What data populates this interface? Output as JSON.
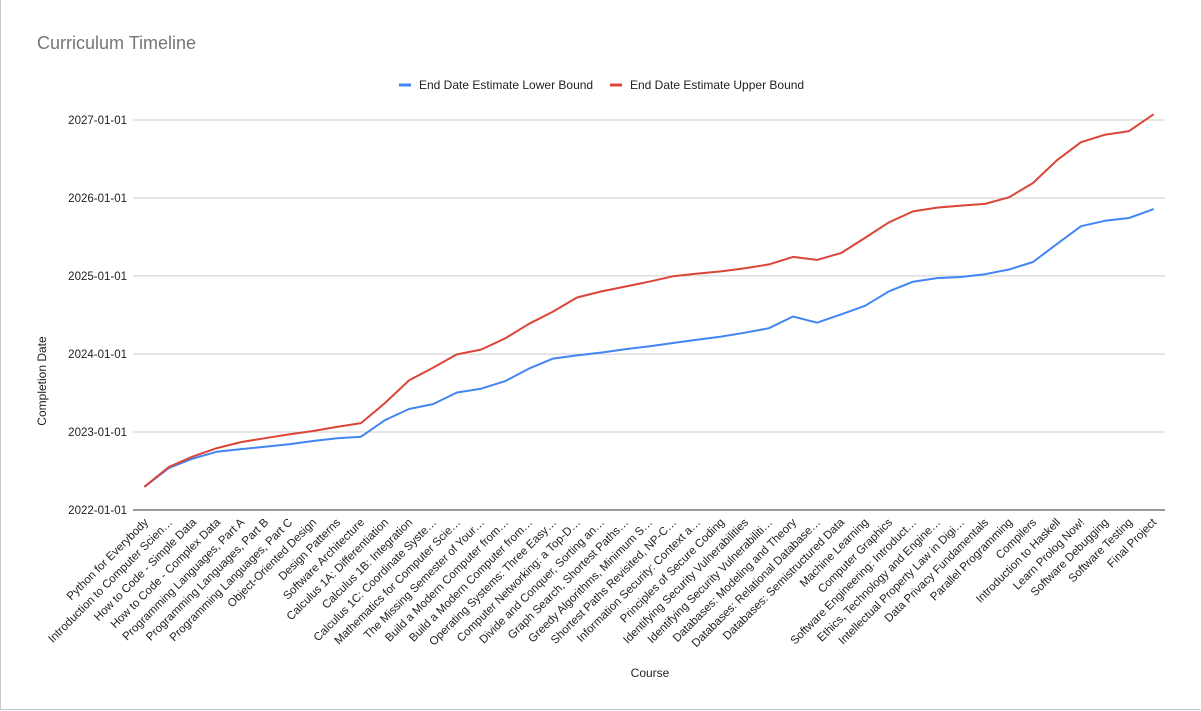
{
  "chart_data": {
    "type": "line",
    "title": "Curriculum Timeline",
    "xlabel": "Course",
    "ylabel": "Completion Date",
    "ylim": [
      "2022-01-01",
      "2027-01-01"
    ],
    "y_ticks": [
      "2022-01-01",
      "2023-01-01",
      "2024-01-01",
      "2025-01-01",
      "2026-01-01",
      "2027-01-01"
    ],
    "grid": true,
    "legend_position": "top",
    "categories": [
      "Python for Everybody",
      "Introduction to Computer Scien…",
      "How to Code - Simple Data",
      "How to Code - Complex Data",
      "Programming Languages, Part A",
      "Programming Languages, Part B",
      "Programming Languages, Part C",
      "Object-Oriented Design",
      "Design Patterns",
      "Software Architecture",
      "Calculus 1A: Differentiation",
      "Calculus 1B: Integration",
      "Calculus 1C: Coordinate Syste…",
      "Mathematics for Computer Scie…",
      "The Missing Semester of Your…",
      "Build a Modern Computer from…",
      "Build a Modern Computer from…",
      "Operating Systems: Three Easy…",
      "Computer Networking: a Top-D…",
      "Divide and Conquer, Sorting an…",
      "Graph Search, Shortest Paths…",
      "Greedy Algorithms, Minimum S…",
      "Shortest Paths Revisited, NP-C…",
      "Information Security: Context a…",
      "Principles of Secure Coding",
      "Identifying Security Vulnerabilities",
      "Identifying Security Vulnerabiliti…",
      "Databases: Modeling and Theory",
      "Databases: Relational Database…",
      "Databases: Semistructured Data",
      "Machine Learning",
      "Computer Graphics",
      "Software Engineering: Introduct…",
      "Ethics, Technology and Engine…",
      "Intellectual Property Law in Digi…",
      "Data Privacy Fundamentals",
      "Parallel Programming",
      "Compilers",
      "Introduction to Haskell",
      "Learn Prolog Now!",
      "Software Debugging",
      "Software Testing",
      "Final Project"
    ],
    "series": [
      {
        "name": "End Date Estimate Lower Bound",
        "color": "#4285f4",
        "values": [
          "2022-04-22",
          "2022-07-17",
          "2022-08-30",
          "2022-10-01",
          "2022-10-13",
          "2022-10-24",
          "2022-11-05",
          "2022-11-20",
          "2022-12-03",
          "2022-12-10",
          "2023-02-26",
          "2023-04-19",
          "2023-05-12",
          "2023-07-05",
          "2023-07-23",
          "2023-08-27",
          "2023-10-25",
          "2023-12-11",
          "2023-12-26",
          "2024-01-08",
          "2024-01-24",
          "2024-02-06",
          "2024-02-22",
          "2024-03-08",
          "2024-03-23",
          "2024-04-10",
          "2024-05-01",
          "2024-06-25",
          "2024-05-27",
          "2024-07-05",
          "2024-08-14",
          "2024-10-21",
          "2024-12-05",
          "2024-12-22",
          "2024-12-27",
          "2025-01-09",
          "2025-01-31",
          "2025-03-07",
          "2025-05-31",
          "2025-08-22",
          "2025-09-16",
          "2025-09-29",
          "2025-11-09"
        ]
      },
      {
        "name": "End Date Estimate Upper Bound",
        "color": "#db4437",
        "values": [
          "2022-04-22",
          "2022-07-22",
          "2022-09-09",
          "2022-10-18",
          "2022-11-15",
          "2022-12-03",
          "2022-12-21",
          "2023-01-06",
          "2023-01-25",
          "2023-02-12",
          "2023-05-17",
          "2023-08-31",
          "2023-10-29",
          "2023-12-31",
          "2024-01-22",
          "2024-03-14",
          "2024-05-22",
          "2024-07-18",
          "2024-09-22",
          "2024-10-20",
          "2024-11-12",
          "2024-12-05",
          "2024-12-30",
          "2025-01-12",
          "2025-01-22",
          "2025-02-06",
          "2025-02-24",
          "2025-03-31",
          "2025-03-17",
          "2025-04-18",
          "2025-06-28",
          "2025-09-09",
          "2025-10-30",
          "2025-11-17",
          "2025-11-26",
          "2025-12-04",
          "2026-01-04",
          "2026-03-12",
          "2026-06-27",
          "2026-09-19",
          "2026-10-24",
          "2026-11-10",
          "2027-01-26"
        ]
      }
    ]
  }
}
